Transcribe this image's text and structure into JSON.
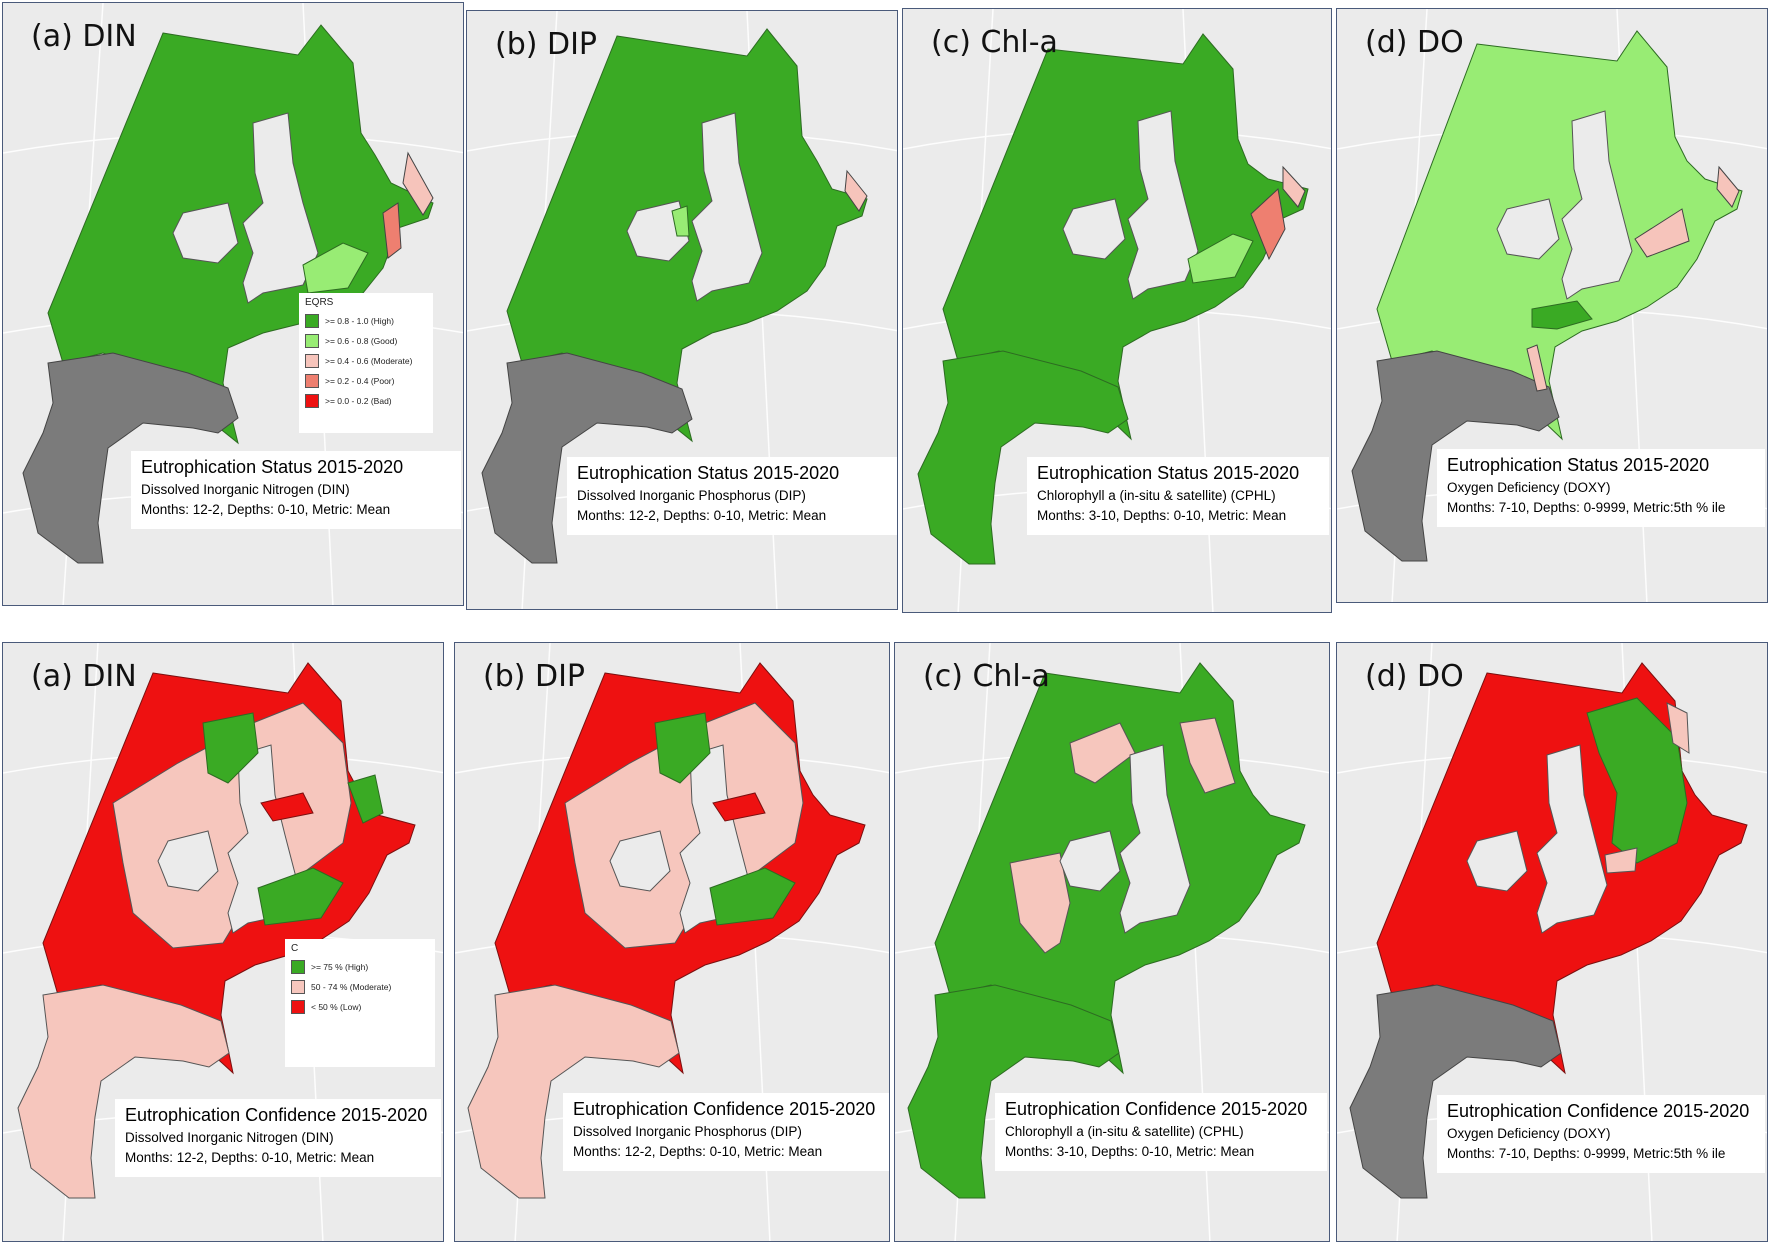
{
  "colors": {
    "high": "#3aaa24",
    "good": "#98ec74",
    "moderate": "#f6c4bb",
    "poor": "#ee7f70",
    "bad": "#ee1111",
    "land_gray": "#7b7b7b",
    "conf_moderate": "#f6c6bd",
    "conf_low": "#ee1111"
  },
  "legend_status": {
    "title": "EQRS",
    "items": [
      {
        "label": ">= 0.8 - 1.0 (High)"
      },
      {
        "label": ">= 0.6 - 0.8 (Good)"
      },
      {
        "label": ">= 0.4 - 0.6 (Moderate)"
      },
      {
        "label": ">= 0.2 - 0.4 (Poor)"
      },
      {
        "label": ">= 0.0 - 0.2 (Bad)"
      }
    ]
  },
  "legend_conf": {
    "title": "C",
    "items": [
      {
        "label": ">= 75 % (High)"
      },
      {
        "label": "50 - 74 % (Moderate)"
      },
      {
        "label": "< 50 % (Low)"
      }
    ]
  },
  "panels": [
    {
      "label": "(a) DIN",
      "heading": "Eutrophication Status 2015-2020",
      "line1": "Dissolved Inorganic Nitrogen (DIN)",
      "line2": "Months: 12-2, Depths: 0-10, Metric: Mean"
    },
    {
      "label": "(b) DIP",
      "heading": "Eutrophication Status 2015-2020",
      "line1": "Dissolved Inorganic Phosphorus (DIP)",
      "line2": "Months: 12-2, Depths: 0-10, Metric: Mean"
    },
    {
      "label": "(c) Chl-a",
      "heading": "Eutrophication Status 2015-2020",
      "line1": "Chlorophyll a (in-situ & satellite) (CPHL)",
      "line2": "Months: 3-10, Depths: 0-10, Metric: Mean"
    },
    {
      "label": "(d) DO",
      "heading": "Eutrophication Status 2015-2020",
      "line1": "Oxygen Deficiency (DOXY)",
      "line2": "Months: 7-10, Depths: 0-9999, Metric:5th % ile"
    },
    {
      "label": "(a) DIN",
      "heading": "Eutrophication Confidence 2015-2020",
      "line1": "Dissolved Inorganic Nitrogen (DIN)",
      "line2": "Months: 12-2, Depths: 0-10, Metric: Mean"
    },
    {
      "label": "(b) DIP",
      "heading": "Eutrophication Confidence 2015-2020",
      "line1": "Dissolved Inorganic Phosphorus (DIP)",
      "line2": "Months: 12-2, Depths: 0-10, Metric: Mean"
    },
    {
      "label": "(c) Chl-a",
      "heading": "Eutrophication Confidence 2015-2020",
      "line1": "Chlorophyll a (in-situ & satellite) (CPHL)",
      "line2": "Months: 3-10, Depths: 0-10, Metric: Mean"
    },
    {
      "label": "(d) DO",
      "heading": "Eutrophication Confidence 2015-2020",
      "line1": "Oxygen Deficiency (DOXY)",
      "line2": "Months: 7-10, Depths: 0-9999, Metric:5th % ile"
    }
  ]
}
